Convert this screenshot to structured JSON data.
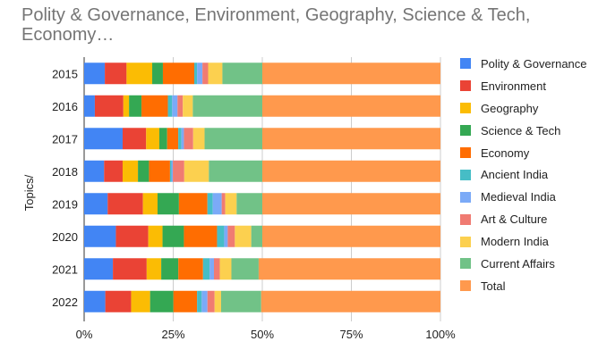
{
  "chart_data": {
    "type": "bar",
    "orientation": "horizontal",
    "stacked": "percent",
    "title": "Polity & Governance, Environment, Geography, Science & Tech, Economy…",
    "xlabel": "",
    "ylabel": "Topics/",
    "xlim": [
      0,
      100
    ],
    "x_ticks": [
      "0%",
      "25%",
      "50%",
      "75%",
      "100%"
    ],
    "grid": true,
    "legend_position": "right",
    "categories": [
      "2015",
      "2016",
      "2017",
      "2018",
      "2019",
      "2020",
      "2021",
      "2022"
    ],
    "series": [
      {
        "name": "Polity & Governance",
        "color": "#4285f4",
        "values": [
          5.8,
          3.0,
          10.8,
          5.6,
          6.6,
          8.9,
          7.9,
          5.9
        ]
      },
      {
        "name": "Environment",
        "color": "#ea4335",
        "values": [
          6.1,
          8.0,
          6.6,
          5.2,
          9.9,
          9.1,
          9.3,
          7.2
        ]
      },
      {
        "name": "Geography",
        "color": "#fbbc04",
        "values": [
          7.2,
          1.6,
          3.7,
          4.3,
          4.1,
          4.0,
          4.0,
          5.3
        ]
      },
      {
        "name": "Science & Tech",
        "color": "#34a853",
        "values": [
          3.0,
          3.5,
          2.2,
          3.1,
          6.0,
          6.0,
          4.7,
          6.5
        ]
      },
      {
        "name": "Economy",
        "color": "#ff6d01",
        "values": [
          8.8,
          7.4,
          3.1,
          5.9,
          8.0,
          9.3,
          6.8,
          6.6
        ]
      },
      {
        "name": "Ancient India",
        "color": "#46bdc6",
        "values": [
          0.8,
          1.2,
          0.9,
          0.4,
          1.5,
          2.0,
          1.8,
          1.3
        ]
      },
      {
        "name": "Medieval India",
        "color": "#7baaf7",
        "values": [
          1.5,
          1.5,
          0.7,
          0.4,
          2.5,
          1.0,
          1.2,
          1.6
        ]
      },
      {
        "name": "Art & Culture",
        "color": "#f07b72",
        "values": [
          1.6,
          1.5,
          2.6,
          3.2,
          1.0,
          2.0,
          1.6,
          2.0
        ]
      },
      {
        "name": "Modern India",
        "color": "#fcd04f",
        "values": [
          4.0,
          2.8,
          3.2,
          6.9,
          3.2,
          4.6,
          3.2,
          1.8
        ]
      },
      {
        "name": "Current Affairs",
        "color": "#71c287",
        "values": [
          11.2,
          19.5,
          16.2,
          15.0,
          7.2,
          3.1,
          7.5,
          11.2
        ]
      },
      {
        "name": "Total",
        "color": "#ff994d",
        "values": [
          50,
          50,
          50,
          50,
          50,
          50,
          50,
          50
        ]
      }
    ]
  }
}
